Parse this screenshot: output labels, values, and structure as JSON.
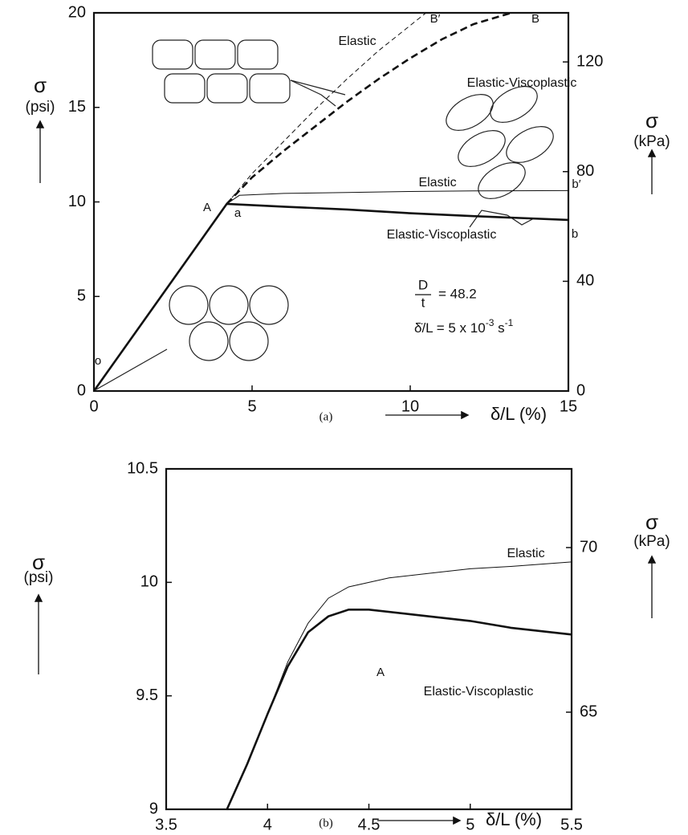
{
  "chart_data": [
    {
      "type": "line",
      "xlim": [
        0,
        15
      ],
      "xticks": [
        0,
        5,
        10,
        15
      ],
      "ylim": [
        0,
        20
      ],
      "yticks": [
        0,
        5,
        10,
        15,
        20
      ],
      "y2lim": [
        0,
        137.9
      ],
      "y2ticks": [
        0,
        40,
        80,
        120
      ],
      "xlabel": "δ/L (%)",
      "ylabel": [
        "σ",
        "(psi)"
      ],
      "y2label": [
        "σ",
        "(kPa)"
      ],
      "caption": "(a)",
      "series": [
        {
          "name": "Elastic",
          "color": "#111111",
          "linewidth": 1,
          "dashed": false,
          "x": [
            4.2,
            4.6,
            6,
            8,
            10,
            12,
            15
          ],
          "values": [
            9.9,
            10.35,
            10.45,
            10.5,
            10.55,
            10.58,
            10.6
          ]
        },
        {
          "name": "Elastic-Viscoplastic",
          "color": "#111111",
          "linewidth": 2.6,
          "dashed": false,
          "x": [
            0,
            4.2,
            6,
            8,
            10,
            12,
            15
          ],
          "values": [
            0,
            9.9,
            9.75,
            9.6,
            9.4,
            9.25,
            9.05
          ]
        },
        {
          "name": "Elastic",
          "color": "#111111",
          "linewidth": 1,
          "dashed": true,
          "x": [
            4.2,
            5,
            6,
            7,
            8,
            9,
            10.5
          ],
          "values": [
            9.9,
            11.5,
            13.2,
            14.9,
            16.5,
            18,
            20
          ]
        },
        {
          "name": "Elastic-Viscoplastic",
          "color": "#111111",
          "linewidth": 2.6,
          "dashed": true,
          "x": [
            4.2,
            5,
            6,
            7,
            8,
            9,
            10,
            11,
            12,
            13.2
          ],
          "values": [
            9.9,
            11.3,
            12.7,
            14,
            15.3,
            16.5,
            17.6,
            18.6,
            19.4,
            20
          ]
        }
      ],
      "point_labels": [
        "A",
        "a",
        "o",
        "B′",
        "B",
        "b′",
        "b"
      ],
      "annotations": [
        "D",
        "t",
        "= 48.2",
        "δ̇/L = 5 x 10",
        "-3",
        " s",
        "-1"
      ]
    },
    {
      "type": "line",
      "xlim": [
        3.5,
        5.5
      ],
      "xticks": [
        3.5,
        4,
        4.5,
        5,
        5.5
      ],
      "ylim": [
        9,
        10.5
      ],
      "yticks": [
        9,
        9.5,
        10,
        10.5
      ],
      "y2lim": [
        62.05,
        72.39
      ],
      "y2ticks": [
        65,
        70
      ],
      "xlabel": "δ/L (%)",
      "ylabel": [
        "σ",
        "(psi)"
      ],
      "y2label": [
        "σ",
        "(kPa)"
      ],
      "caption": "(b)",
      "series": [
        {
          "name": "Elastic",
          "color": "#111111",
          "linewidth": 1,
          "dashed": false,
          "x": [
            3.8,
            3.9,
            4,
            4.1,
            4.2,
            4.3,
            4.4,
            4.6,
            4.8,
            5,
            5.2,
            5.5
          ],
          "values": [
            9,
            9.2,
            9.42,
            9.65,
            9.82,
            9.93,
            9.98,
            10.02,
            10.04,
            10.06,
            10.07,
            10.09
          ]
        },
        {
          "name": "Elastic-Viscoplastic",
          "color": "#111111",
          "linewidth": 2.6,
          "dashed": false,
          "x": [
            3.8,
            3.9,
            4,
            4.1,
            4.2,
            4.3,
            4.4,
            4.5,
            4.7,
            5,
            5.2,
            5.5
          ],
          "values": [
            9,
            9.2,
            9.42,
            9.63,
            9.78,
            9.85,
            9.88,
            9.88,
            9.86,
            9.83,
            9.8,
            9.77
          ]
        }
      ],
      "point_labels": [
        "A"
      ]
    }
  ]
}
